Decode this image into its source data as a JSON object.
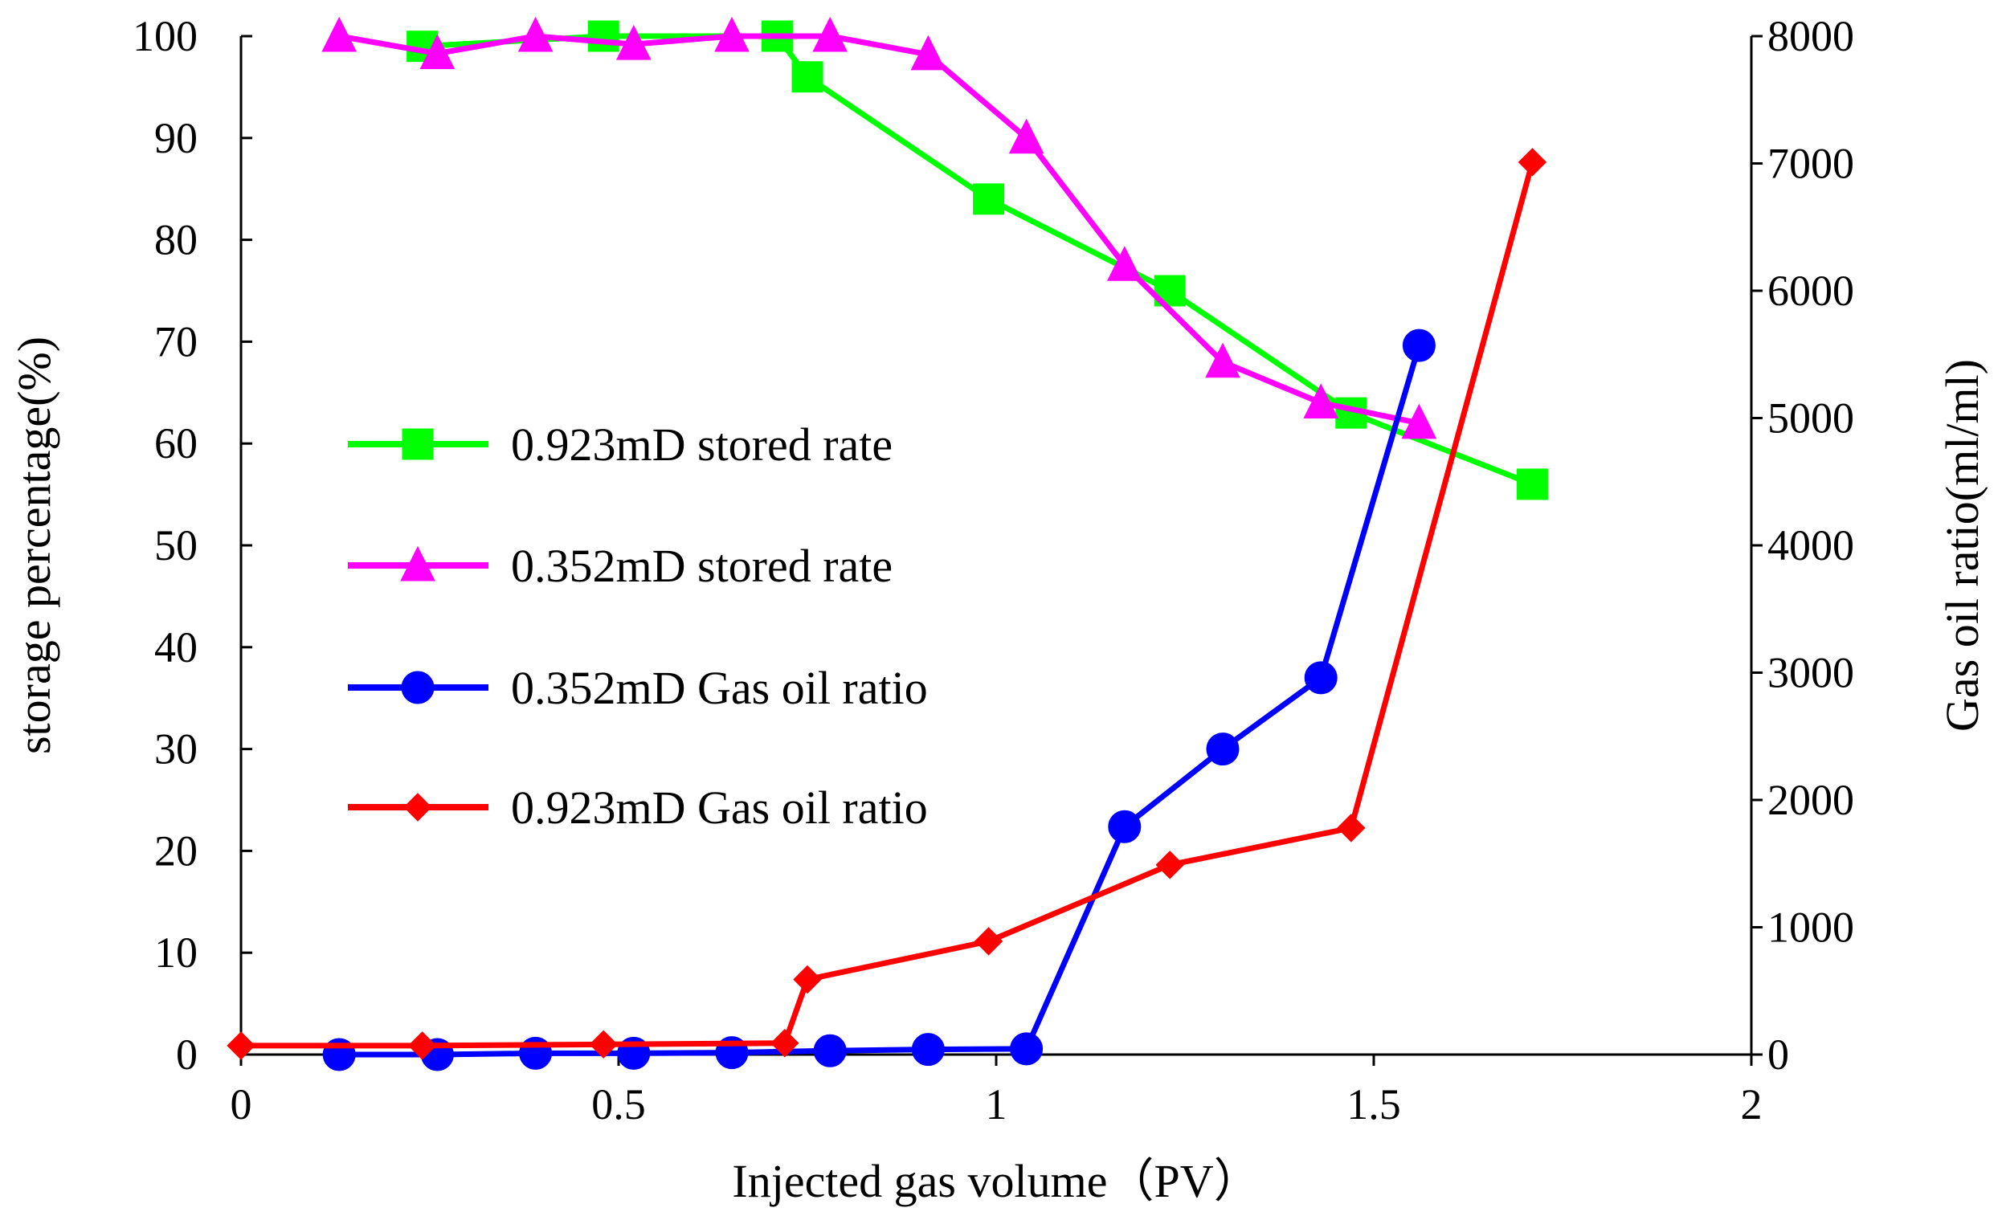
{
  "chart_data": {
    "type": "line",
    "xlabel": "Injected gas volume（PV）",
    "ylabel_left": "storage percentage(%)",
    "ylabel_right": "Gas oil ratio(ml/ml)",
    "xlim": [
      0,
      2
    ],
    "ylim_left": [
      0,
      100
    ],
    "ylim_right": [
      0,
      8000
    ],
    "x_ticks": [
      "0",
      "0.5",
      "1",
      "1.5",
      "2"
    ],
    "y_left_ticks": [
      "0",
      "10",
      "20",
      "30",
      "40",
      "50",
      "60",
      "70",
      "80",
      "90",
      "100"
    ],
    "y_right_ticks": [
      "0",
      "1000",
      "2000",
      "3000",
      "4000",
      "5000",
      "6000",
      "7000",
      "8000"
    ],
    "grid": false,
    "legend_position": "left-center",
    "series": [
      {
        "name": "0.923mD stored rate",
        "axis": "left",
        "color": "#00ff00",
        "marker": "square",
        "points": [
          [
            0.24,
            99
          ],
          [
            0.48,
            100
          ],
          [
            0.71,
            100
          ],
          [
            0.75,
            96
          ],
          [
            0.99,
            84
          ],
          [
            1.23,
            75
          ],
          [
            1.47,
            63
          ],
          [
            1.71,
            56
          ]
        ]
      },
      {
        "name": "0.352mD stored rate",
        "axis": "left",
        "color": "#ff00ff",
        "marker": "triangle",
        "points": [
          [
            0.13,
            100
          ],
          [
            0.26,
            98.3
          ],
          [
            0.39,
            100
          ],
          [
            0.52,
            99.2
          ],
          [
            0.65,
            100
          ],
          [
            0.78,
            100
          ],
          [
            0.91,
            98.2
          ],
          [
            1.04,
            90
          ],
          [
            1.17,
            77.5
          ],
          [
            1.3,
            68
          ],
          [
            1.43,
            64
          ],
          [
            1.56,
            62
          ]
        ]
      },
      {
        "name": "0.352mD Gas oil ratio",
        "axis": "right",
        "color": "#0000ff",
        "marker": "circle",
        "points": [
          [
            0.13,
            0
          ],
          [
            0.26,
            0
          ],
          [
            0.39,
            10
          ],
          [
            0.52,
            10
          ],
          [
            0.65,
            15
          ],
          [
            0.78,
            30
          ],
          [
            0.91,
            40
          ],
          [
            1.04,
            45
          ],
          [
            1.17,
            1790
          ],
          [
            1.3,
            2400
          ],
          [
            1.43,
            2960
          ],
          [
            1.56,
            5570
          ]
        ]
      },
      {
        "name": "0.923mD Gas oil ratio",
        "axis": "right",
        "color": "#ff0000",
        "marker": "diamond",
        "points": [
          [
            0,
            70
          ],
          [
            0.24,
            70
          ],
          [
            0.48,
            80
          ],
          [
            0.72,
            90
          ],
          [
            0.75,
            590
          ],
          [
            0.99,
            890
          ],
          [
            1.23,
            1490
          ],
          [
            1.47,
            1780
          ],
          [
            1.71,
            7010
          ]
        ]
      }
    ]
  }
}
